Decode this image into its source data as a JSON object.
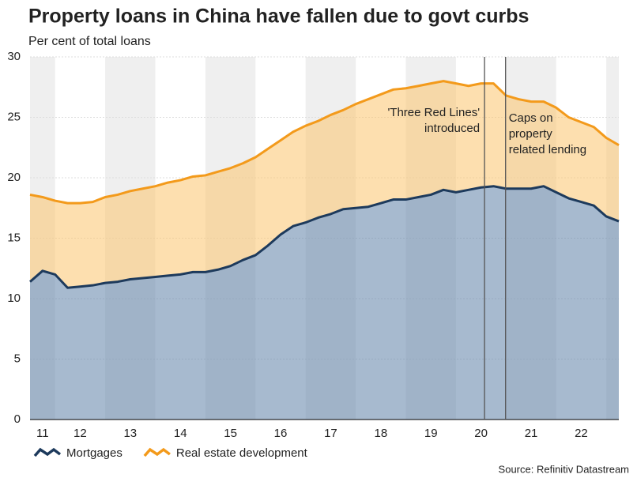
{
  "chart_data": {
    "type": "stacked-area",
    "title": "Property loans in China have fallen due to govt curbs",
    "subtitle": "Per cent of total loans",
    "source": "Source: Refinitiv Datastream",
    "x": [
      11.5,
      11.75,
      12,
      12.25,
      12.5,
      12.75,
      13,
      13.25,
      13.5,
      13.75,
      14,
      14.25,
      14.5,
      14.75,
      15,
      15.25,
      15.5,
      15.75,
      16,
      16.25,
      16.5,
      16.75,
      17,
      17.25,
      17.5,
      17.75,
      18,
      18.25,
      18.5,
      18.75,
      19,
      19.25,
      19.5,
      19.75,
      20,
      20.25,
      20.5,
      20.75,
      21,
      21.25,
      21.5,
      21.75,
      22,
      22.25,
      22.5,
      22.75,
      23,
      23.25
    ],
    "series": [
      {
        "name": "Mortgages",
        "color": "#1d3a5c",
        "fill": "#5f82a8",
        "values": [
          11.4,
          12.3,
          12.0,
          10.9,
          11.0,
          11.1,
          11.3,
          11.4,
          11.6,
          11.7,
          11.8,
          11.9,
          12.0,
          12.2,
          12.2,
          12.4,
          12.7,
          13.2,
          13.6,
          14.4,
          15.3,
          16.0,
          16.3,
          16.7,
          17.0,
          17.4,
          17.5,
          17.6,
          17.9,
          18.2,
          18.2,
          18.4,
          18.6,
          19.0,
          18.8,
          19.0,
          19.2,
          19.3,
          19.1,
          19.1,
          19.1,
          19.3,
          18.8,
          18.3,
          18.0,
          17.7,
          16.8,
          16.4
        ]
      },
      {
        "name": "Real estate development",
        "color": "#f39a1b",
        "fill": "#fcc46e",
        "values": [
          7.2,
          6.1,
          6.1,
          7.0,
          6.9,
          6.9,
          7.1,
          7.2,
          7.3,
          7.4,
          7.5,
          7.7,
          7.8,
          7.9,
          8.0,
          8.1,
          8.1,
          8.0,
          8.1,
          8.0,
          7.8,
          7.8,
          8.0,
          8.0,
          8.2,
          8.2,
          8.6,
          8.9,
          9.0,
          9.1,
          9.2,
          9.2,
          9.2,
          9.0,
          9.0,
          8.6,
          8.6,
          8.5,
          7.7,
          7.4,
          7.2,
          7.0,
          7.0,
          6.7,
          6.6,
          6.5,
          6.5,
          6.3
        ]
      }
    ],
    "xlim": [
      11.5,
      23.25
    ],
    "xticks": [
      {
        "value": 11.75,
        "label": "11"
      },
      {
        "value": 12.5,
        "label": "12"
      },
      {
        "value": 13.5,
        "label": "13"
      },
      {
        "value": 14.5,
        "label": "14"
      },
      {
        "value": 15.5,
        "label": "15"
      },
      {
        "value": 16.5,
        "label": "16"
      },
      {
        "value": 17.5,
        "label": "17"
      },
      {
        "value": 18.5,
        "label": "18"
      },
      {
        "value": 19.5,
        "label": "19"
      },
      {
        "value": 20.5,
        "label": "20"
      },
      {
        "value": 21.5,
        "label": "21"
      },
      {
        "value": 22.5,
        "label": "22"
      }
    ],
    "ylim": [
      0,
      30
    ],
    "yticks": [
      0,
      5,
      10,
      15,
      20,
      25,
      30
    ],
    "grid": true,
    "legend": "bottom-left",
    "annotations": [
      {
        "x": 20.57,
        "lines": [
          "'Three Red Lines'",
          "introduced"
        ],
        "side": "left"
      },
      {
        "x": 20.99,
        "lines": [
          "Caps on",
          "property",
          "related lending"
        ],
        "side": "right"
      }
    ]
  }
}
